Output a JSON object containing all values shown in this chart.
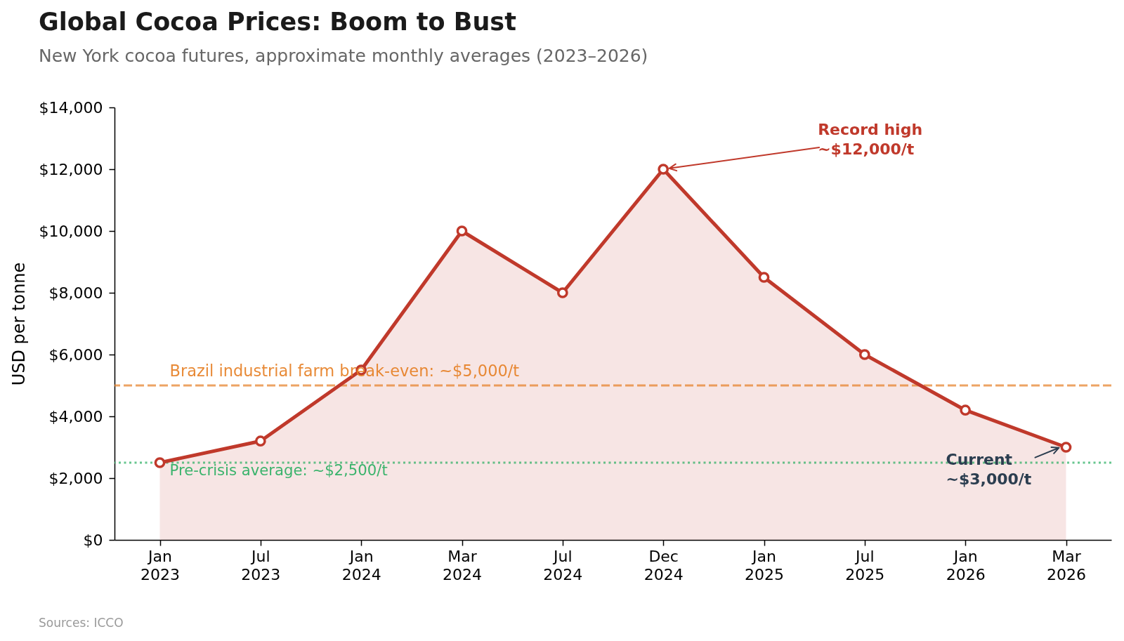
{
  "chart_data": {
    "type": "area",
    "title": "Global Cocoa Prices: Boom to Bust",
    "subtitle": "New York cocoa futures, approximate monthly averages (2023–2026)",
    "ylabel": "USD per tonne",
    "categories": [
      "Jan 2023",
      "Jul 2023",
      "Jan 2024",
      "Mar 2024",
      "Jul 2024",
      "Dec 2024",
      "Jan 2025",
      "Jul 2025",
      "Jan 2026",
      "Mar 2026"
    ],
    "series": [
      {
        "color": "#c0392b",
        "values": [
          2500,
          3200,
          5500,
          10000,
          8000,
          12000,
          8500,
          6000,
          4200,
          3000
        ]
      }
    ],
    "ylim": [
      0,
      14000
    ],
    "yticks": [
      {
        "value": 0,
        "label": "$0"
      },
      {
        "value": 2000,
        "label": "$2,000"
      },
      {
        "value": 4000,
        "label": "$4,000"
      },
      {
        "value": 6000,
        "label": "$6,000"
      },
      {
        "value": 8000,
        "label": "$8,000"
      },
      {
        "value": 10000,
        "label": "$10,000"
      },
      {
        "value": 12000,
        "label": "$12,000"
      },
      {
        "value": 14000,
        "label": "$14,000"
      }
    ],
    "grid": false,
    "marker": "circle",
    "ref_lines": [
      {
        "axis": "y",
        "value": 5000,
        "label": "Brazil industrial farm break-even: ~$5,000/t",
        "color": "#e67e22",
        "line_style": "dashed"
      },
      {
        "axis": "y",
        "value": 2500,
        "label": "Pre-crisis average: ~$2,500/t",
        "color": "#27ae60",
        "line_style": "dotted"
      }
    ],
    "annotations": [
      {
        "text": "Record high\n~$12,000/t",
        "x": "Dec 2024",
        "y": 12000
      },
      {
        "text": "Current\n~$3,000/t",
        "x": "Mar 2026",
        "y": 3000
      },
      "Sources: ICCO"
    ]
  }
}
